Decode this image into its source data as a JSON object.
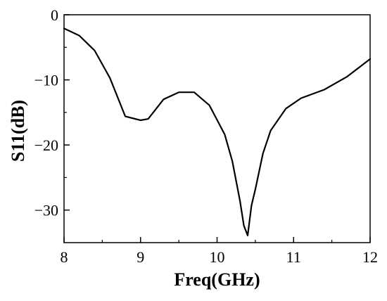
{
  "chart_data": {
    "type": "line",
    "title": "",
    "xlabel": "Freq(GHz)",
    "ylabel": "S11(dB)",
    "xlim": [
      8,
      12
    ],
    "ylim": [
      -35,
      0
    ],
    "xticks": [
      8,
      9,
      10,
      11,
      12
    ],
    "yticks": [
      0,
      -10,
      -20,
      -30
    ],
    "xtick_labels": [
      "8",
      "9",
      "10",
      "11",
      "12"
    ],
    "ytick_labels": [
      "0",
      "−10",
      "−20",
      "−30"
    ],
    "grid": false,
    "legend": "none",
    "series": [
      {
        "color": "#000000",
        "x": [
          8.0,
          8.2,
          8.4,
          8.6,
          8.8,
          9.0,
          9.1,
          9.3,
          9.5,
          9.7,
          9.9,
          10.1,
          10.2,
          10.3,
          10.35,
          10.4,
          10.45,
          10.5,
          10.6,
          10.7,
          10.9,
          11.1,
          11.4,
          11.7,
          12.0
        ],
        "y": [
          -2.1,
          -3.2,
          -5.5,
          -9.7,
          -15.6,
          -16.2,
          -16.0,
          -13.0,
          -11.9,
          -11.9,
          -13.9,
          -18.4,
          -22.5,
          -28.6,
          -32.4,
          -33.9,
          -29.3,
          -26.8,
          -21.3,
          -17.8,
          -14.4,
          -12.8,
          -11.5,
          -9.5,
          -6.8
        ]
      }
    ]
  }
}
